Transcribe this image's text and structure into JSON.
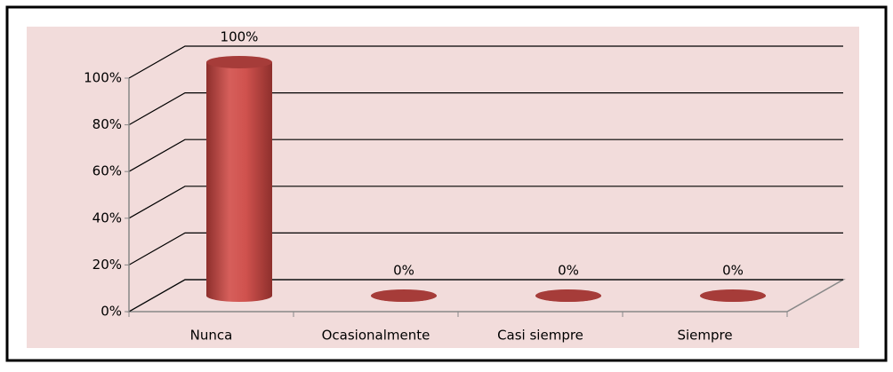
{
  "chart_data": {
    "type": "bar3d",
    "categories": [
      "Nunca",
      "Ocasionalmente",
      "Casi siempre",
      "Siempre"
    ],
    "values": [
      100,
      0,
      0,
      0
    ],
    "value_labels": [
      "100%",
      "0%",
      "0%",
      "0%"
    ],
    "color": "#c0504d",
    "ylim": [
      0,
      100
    ],
    "yticks": [
      {
        "value": 0,
        "label": "0%"
      },
      {
        "value": 20,
        "label": "20%"
      },
      {
        "value": 40,
        "label": "40%"
      },
      {
        "value": 60,
        "label": "60%"
      },
      {
        "value": 80,
        "label": "80%"
      },
      {
        "value": 100,
        "label": "100%"
      }
    ],
    "grid": true
  }
}
